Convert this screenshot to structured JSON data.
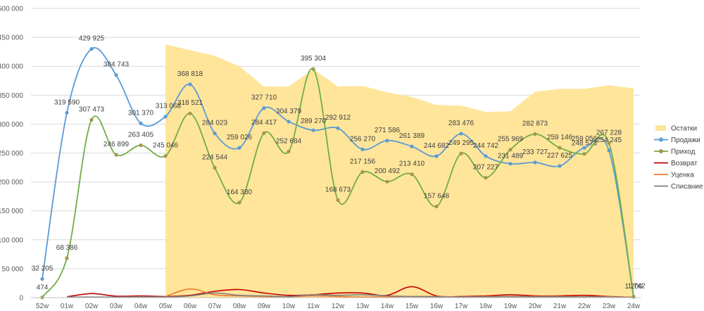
{
  "chart_data": {
    "type": "line",
    "title": "",
    "xlabel": "",
    "ylabel": "",
    "ylim": [
      0,
      500000
    ],
    "ytick_step": 50000,
    "yticks": [
      "0",
      "50 000",
      "100 000",
      "150 000",
      "200 000",
      "250 000",
      "300 000",
      "350 000",
      "400 000",
      "450 000",
      "500 000"
    ],
    "grid": true,
    "legend_position": "right",
    "categories": [
      "52w",
      "01w",
      "02w",
      "03w",
      "04w",
      "05w",
      "06w",
      "07w",
      "08w",
      "09w",
      "10w",
      "11w",
      "12w",
      "13w",
      "14w",
      "15w",
      "16w",
      "17w",
      "18w",
      "19w",
      "20w",
      "21w",
      "22w",
      "23w",
      "24w"
    ],
    "series": [
      {
        "name": "Остатки",
        "kind": "area",
        "color": "#FFE59A",
        "values": [
          null,
          null,
          null,
          null,
          null,
          438000,
          428000,
          418000,
          400000,
          365000,
          365000,
          395000,
          365000,
          366000,
          355000,
          347000,
          333000,
          332000,
          321000,
          322000,
          356000,
          361000,
          361000,
          367000,
          362000
        ]
      },
      {
        "name": "Продажи",
        "kind": "line",
        "color": "#5B9BD5",
        "markers": true,
        "values": [
          32205,
          319590,
          429925,
          384743,
          301370,
          313068,
          368818,
          284023,
          259026,
          327710,
          304379,
          289270,
          292912,
          256270,
          271586,
          261389,
          244682,
          283476,
          244742,
          231489,
          233727,
          227625,
          259056,
          254245,
          1742
        ],
        "labels": [
          "32 205",
          "319 590",
          "429 925",
          "384 743",
          "301 370",
          "313 068",
          "368 818",
          "284 023",
          "259 026",
          "327 710",
          "304 379",
          "289 270",
          "292 912",
          "256 270",
          "271 586",
          "261 389",
          "244 682",
          "283 476",
          "244 742",
          "231 489",
          "233 727",
          "227 625",
          "259 056",
          "254 245",
          "1 742"
        ]
      },
      {
        "name": "Приход",
        "kind": "line",
        "color": "#70AD47",
        "marker_color": "#A6954E",
        "markers": true,
        "values": [
          474,
          68386,
          307473,
          246899,
          263405,
          245046,
          318521,
          224544,
          164380,
          284417,
          252684,
          395304,
          168673,
          217156,
          200492,
          213410,
          157648,
          249295,
          207227,
          255969,
          282873,
          259146,
          248573,
          267228,
          1200
        ],
        "labels": [
          "474",
          "68 386",
          "307 473",
          "246 899",
          "263 405",
          "245 046",
          "318 521",
          "224 544",
          "164 380",
          "284 417",
          "252 684",
          "395 304",
          "168 673",
          "217 156",
          "200 492",
          "213 410",
          "157 648",
          "249 295",
          "207 227",
          "255 969",
          "282 873",
          "259 146",
          "248 573",
          "267 228",
          "1 200"
        ]
      },
      {
        "name": "Возврат",
        "kind": "line",
        "color": "#C00000",
        "markers": false,
        "values": [
          null,
          1500,
          7000,
          2500,
          3000,
          2000,
          4000,
          11000,
          14000,
          8000,
          4000,
          5000,
          8000,
          8000,
          4000,
          19000,
          3000,
          2000,
          3000,
          5000,
          3000,
          3000,
          4000,
          2000,
          500
        ]
      },
      {
        "name": "Уценка",
        "kind": "line",
        "color": "#ED7D31",
        "markers": false,
        "values": [
          null,
          null,
          null,
          null,
          null,
          2000,
          15000,
          5000,
          3000,
          2000,
          1500,
          3000,
          2000,
          1000,
          1500,
          2000,
          2000,
          1000,
          2000,
          1500,
          2000,
          2000,
          1500,
          1500,
          500
        ]
      },
      {
        "name": "Списание",
        "kind": "line",
        "color": "#7F7F7F",
        "markers": false,
        "values": [
          null,
          1000,
          1000,
          1000,
          1500,
          1000,
          3000,
          8000,
          4000,
          3000,
          2000,
          5000,
          4000,
          5000,
          3000,
          2000,
          1500,
          1000,
          1500,
          2000,
          1500,
          1500,
          1500,
          1000,
          300
        ]
      }
    ]
  }
}
